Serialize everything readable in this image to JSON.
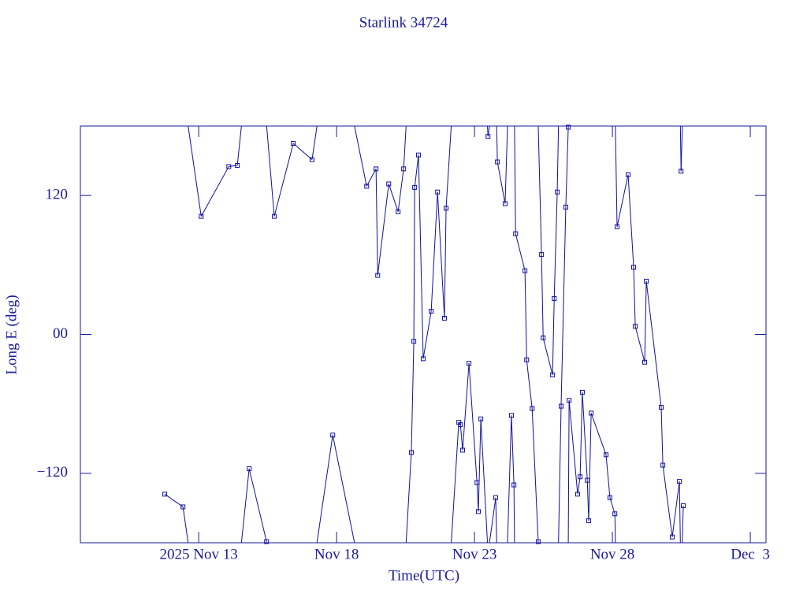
{
  "chart_data": {
    "type": "line",
    "title": "Starlink 34724",
    "xlabel": "Time(UTC)",
    "ylabel": "Long E (deg)",
    "x": [
      11.77,
      12.43,
      13.09,
      14.09,
      14.4,
      14.83,
      15.46,
      15.74,
      16.43,
      17.11,
      17.86,
      19.09,
      19.43,
      19.49,
      19.89,
      20.23,
      20.43,
      20.71,
      20.8,
      20.83,
      20.97,
      21.14,
      21.43,
      21.66,
      21.91,
      21.97,
      22.43,
      22.49,
      22.57,
      22.8,
      23.09,
      23.14,
      23.23,
      23.49,
      23.77,
      23.83,
      24.11,
      24.34,
      24.43,
      24.49,
      24.83,
      24.89,
      25.09,
      25.31,
      25.43,
      25.49,
      25.83,
      25.89,
      26.0,
      26.14,
      26.31,
      26.4,
      26.43,
      26.74,
      26.83,
      26.91,
      27.09,
      27.14,
      27.23,
      27.77,
      27.91,
      28.09,
      28.17,
      28.57,
      28.77,
      28.83,
      29.17,
      29.23,
      29.77,
      29.83,
      30.17,
      30.43,
      30.49,
      30.57
    ],
    "values": [
      -138,
      -149,
      102,
      145,
      146,
      -116,
      -179,
      102,
      165,
      151,
      -87,
      128,
      143,
      51,
      130,
      106,
      143,
      -102,
      -6,
      127,
      155,
      -21,
      20,
      123,
      14,
      109,
      -76,
      -78,
      -100,
      -25,
      -128,
      -153,
      -73,
      171,
      -141,
      149,
      113,
      -70,
      -130,
      87,
      55,
      -22,
      -64,
      -179,
      69,
      -3,
      -35,
      31,
      123,
      -62,
      110,
      179,
      -57,
      -138,
      -123,
      -50,
      -126,
      -161,
      -68,
      -104,
      -141,
      -155,
      93,
      138,
      58,
      7,
      -24,
      46,
      -63,
      -113,
      -175,
      -127,
      141,
      -148
    ],
    "color": "#1010a0",
    "xlim": [
      8.71,
      33.57
    ],
    "xticks": [
      {
        "value": 13,
        "label": "2025 Nov 13"
      },
      {
        "value": 18,
        "label": "Nov 18"
      },
      {
        "value": 23,
        "label": "Nov 23"
      },
      {
        "value": 28,
        "label": "Nov 28"
      },
      {
        "value": 33,
        "label": "Dec  3"
      }
    ],
    "ylim": [
      -180,
      180
    ],
    "yticks": [
      {
        "value": -120,
        "label": "−120"
      },
      {
        "value": 0,
        "label": "00"
      },
      120
    ]
  }
}
